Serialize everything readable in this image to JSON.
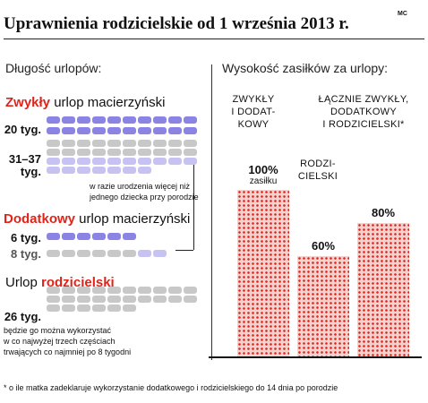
{
  "title": "Uprawnienia rodzicielskie od 1 września 2013 r.",
  "credit": "MC",
  "left": {
    "heading": "Długość urlopów:",
    "zwykly": {
      "label_red": "Zwykły",
      "label_rest": " urlop macierzyński",
      "weeks_main": "20 tyg.",
      "weeks_multi_1": "31–37",
      "weeks_multi_2": "tyg.",
      "note_1": "w razie urodzenia więcej niż",
      "note_2": "jednego dziecka przy porodzie"
    },
    "dodatkowy": {
      "label_red": "Dodatkowy",
      "label_rest": " urlop macierzyński",
      "weeks_main": "6 tyg.",
      "weeks_alt": "8 tyg."
    },
    "rodzicielski": {
      "label_pre": "Urlop ",
      "label_red": "rodzicielski",
      "weeks": "26 tyg.",
      "note_1": "będzie go można wykorzystać",
      "note_2": "w co najwyżej trzech częściach",
      "note_3": "trwających co najmniej po 8 tygodni"
    }
  },
  "right": {
    "heading": "Wysokość zasiłków za urlopy:"
  },
  "footnote": "* o ile matka zadeklaruje wykorzystanie dodatkowego i rodzicielskiego do 14 dnia po porodzie",
  "colors": {
    "purple": "#8b84e4",
    "light_purple": "#c6c2f1",
    "grey": "#c8c8c8",
    "red": "#e2231a"
  },
  "chart_data": [
    {
      "type": "table",
      "title": "Długość urlopów:",
      "rows": [
        {
          "name": "Zwykły urlop macierzyński",
          "weeks": 20,
          "label": "20 tyg."
        },
        {
          "name": "Zwykły urlop macierzyński (w razie urodzenia więcej niż jednego dziecka przy porodzie)",
          "weeks": [
            31,
            37
          ],
          "label": "31–37 tyg."
        },
        {
          "name": "Dodatkowy urlop macierzyński",
          "weeks": 6,
          "label": "6 tyg."
        },
        {
          "name": "Dodatkowy urlop macierzyński (w razie urodzenia więcej niż jednego dziecka przy porodzie)",
          "weeks": 8,
          "label": "8 tyg."
        },
        {
          "name": "Urlop rodzicielski",
          "weeks": 26,
          "label": "26 tyg."
        }
      ]
    },
    {
      "type": "bar",
      "title": "Wysokość zasiłków za urlopy:",
      "categories": [
        {
          "lines": [
            "ZWYKŁY",
            "I DODAT-",
            "KOWY"
          ]
        },
        {
          "lines": [
            "RODZI-",
            "CIELSKI"
          ]
        },
        {
          "lines": [
            "ŁĄCZNIE ZWYKŁY,",
            "DODATKOWY",
            "I RODZICIELSKI*"
          ]
        }
      ],
      "values": [
        100,
        60,
        80
      ],
      "value_labels": [
        "100%",
        "60%",
        "80%"
      ],
      "value_sublabels": [
        "zasiłku",
        "",
        ""
      ],
      "ylim": [
        0,
        100
      ]
    }
  ]
}
